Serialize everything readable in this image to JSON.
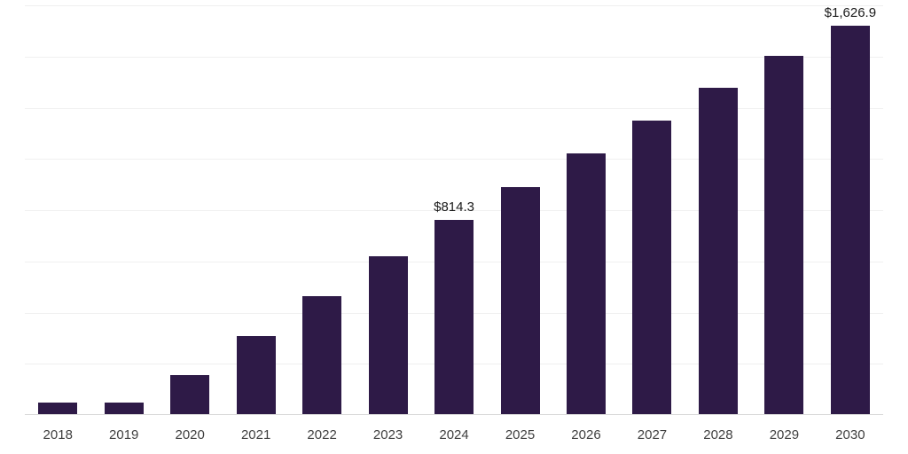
{
  "chart_data": {
    "type": "bar",
    "title": "",
    "xlabel": "",
    "ylabel": "",
    "categories": [
      "2018",
      "2019",
      "2020",
      "2021",
      "2022",
      "2023",
      "2024",
      "2025",
      "2026",
      "2027",
      "2028",
      "2029",
      "2030"
    ],
    "values": [
      48,
      50,
      165,
      325,
      495,
      660,
      814.3,
      950,
      1090,
      1230,
      1365,
      1500,
      1626.9
    ],
    "data_labels": [
      "",
      "",
      "",
      "",
      "",
      "",
      "$814.3",
      "",
      "",
      "",
      "",
      "",
      "$1,626.9"
    ],
    "ylim": [
      0,
      1711
    ],
    "grid": "horizontal",
    "gridline_count": 8,
    "legend": "none",
    "bar_color": "#2e1a47",
    "value_label_color": "#1a1a1a",
    "axis_tick_color": "#404040",
    "gridline_color": "#f0f0f0",
    "baseline_color": "#d9d9d9",
    "background_color": "#ffffff"
  }
}
